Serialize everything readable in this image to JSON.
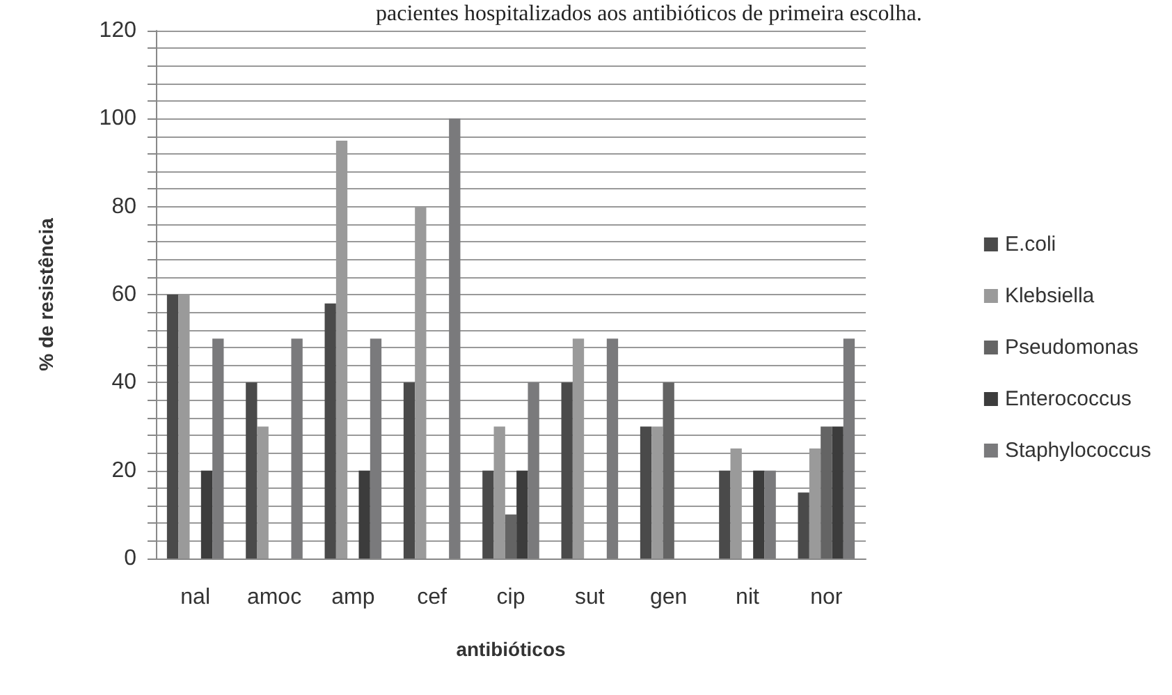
{
  "chart_data": {
    "type": "bar",
    "title": "pacientes hospitalizados aos antibióticos de primeira escolha.",
    "xlabel": "antibióticos",
    "ylabel": "% de resistência",
    "categories": [
      "nal",
      "amoc",
      "amp",
      "cef",
      "cip",
      "sut",
      "gen",
      "nit",
      "nor"
    ],
    "series": [
      {
        "name": "E.coli",
        "color": "#4a4a4a",
        "values": [
          60,
          40,
          58,
          40,
          20,
          40,
          30,
          20,
          15
        ]
      },
      {
        "name": "Klebsiella",
        "color": "#9a9a9a",
        "values": [
          60,
          30,
          95,
          80,
          30,
          50,
          30,
          25,
          25
        ]
      },
      {
        "name": "Pseudomonas",
        "color": "#646464",
        "values": [
          0,
          0,
          0,
          0,
          10,
          0,
          40,
          0,
          30
        ]
      },
      {
        "name": "Enterococcus",
        "color": "#3c3c3c",
        "values": [
          20,
          0,
          20,
          0,
          20,
          0,
          0,
          20,
          30
        ]
      },
      {
        "name": "Staphylococcus",
        "color": "#7a7a7c",
        "values": [
          50,
          50,
          50,
          100,
          40,
          50,
          0,
          20,
          50
        ]
      }
    ],
    "ylim": [
      0,
      120
    ],
    "yticks": [
      0,
      {
        "value": 4,
        "label": null
      },
      {
        "value": 8,
        "label": null
      },
      {
        "value": 12,
        "label": null
      },
      {
        "value": 16,
        "label": null
      },
      20,
      {
        "value": 24,
        "label": null
      },
      {
        "value": 28,
        "label": null
      },
      {
        "value": 32,
        "label": null
      },
      {
        "value": 36,
        "label": null
      },
      40,
      {
        "value": 44,
        "label": null
      },
      {
        "value": 48,
        "label": null
      },
      {
        "value": 52,
        "label": null
      },
      {
        "value": 56,
        "label": null
      },
      60,
      {
        "value": 64,
        "label": null
      },
      {
        "value": 68,
        "label": null
      },
      {
        "value": 72,
        "label": null
      },
      {
        "value": 76,
        "label": null
      },
      80,
      {
        "value": 84,
        "label": null
      },
      {
        "value": 88,
        "label": null
      },
      {
        "value": 92,
        "label": null
      },
      {
        "value": 96,
        "label": null
      },
      100,
      {
        "value": 104,
        "label": null
      },
      {
        "value": 108,
        "label": null
      },
      {
        "value": 112,
        "label": null
      },
      {
        "value": 116,
        "label": null
      },
      120
    ],
    "grid": "y",
    "legend": "right"
  }
}
